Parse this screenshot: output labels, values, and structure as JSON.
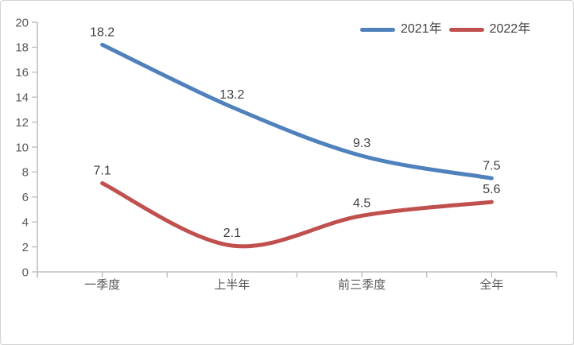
{
  "chart_data": {
    "type": "line",
    "title": "",
    "xlabel": "",
    "ylabel": "",
    "categories": [
      "一季度",
      "上半年",
      "前三季度",
      "全年"
    ],
    "series": [
      {
        "name": "2021年",
        "color": "#4F81BD",
        "values": [
          18.2,
          13.2,
          9.3,
          7.5
        ],
        "labels": [
          "18.2",
          "13.2",
          "9.3",
          "7.5"
        ]
      },
      {
        "name": "2022年",
        "color": "#C0504D",
        "values": [
          7.1,
          2.1,
          4.5,
          5.6
        ],
        "labels": [
          "7.1",
          "2.1",
          "4.5",
          "5.6"
        ]
      }
    ],
    "ylim": [
      0,
      20
    ],
    "ytick_step": 2,
    "ytick_labels": [
      "0",
      "2",
      "4",
      "6",
      "8",
      "10",
      "12",
      "14",
      "16",
      "18",
      "20"
    ],
    "grid": false,
    "smoothed": true,
    "data_labels": true,
    "legend_position": "top-right"
  },
  "style": {
    "axis_color": "#BFBFBF",
    "axis_text_color": "#595959",
    "data_label_color": "#404040",
    "legend_text_color": "#404040",
    "background_color": "#FFFFFF",
    "frame_border_color": "#D2D2D2"
  }
}
